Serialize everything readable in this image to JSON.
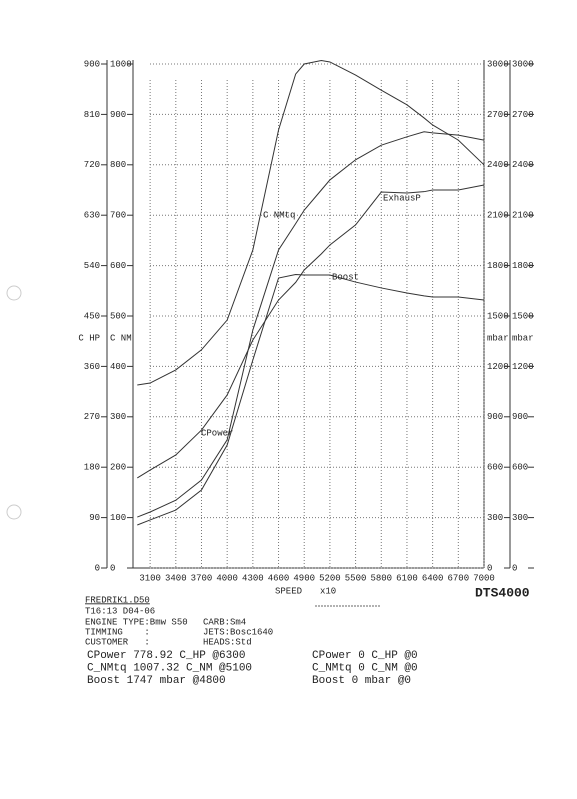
{
  "chart_data": {
    "type": "line",
    "x_label": "SPEED",
    "x_unit": "x10",
    "brand": "DTS4000",
    "x": [
      2950,
      3100,
      3400,
      3700,
      4000,
      4300,
      4600,
      4800,
      4900,
      5100,
      5200,
      5500,
      5800,
      6100,
      6300,
      6400,
      6700,
      7000
    ],
    "xlim": [
      2900,
      7000
    ],
    "xticks": [
      3100,
      3400,
      3700,
      4000,
      4300,
      4600,
      4900,
      5200,
      5500,
      5800,
      6100,
      6400,
      6700,
      7000
    ],
    "y_label": "C HP",
    "ylim": [
      0,
      900
    ],
    "yticks": [
      0,
      90,
      180,
      270,
      360,
      450,
      540,
      630,
      720,
      810,
      900
    ],
    "y2_label": "C NM",
    "y2lim": [
      0,
      1000
    ],
    "y2ticks": [
      0,
      100,
      200,
      300,
      400,
      500,
      600,
      700,
      800,
      900,
      1000
    ],
    "y3_label": "mbar",
    "y3lim": [
      0,
      3000
    ],
    "y3ticks": [
      0,
      300,
      600,
      900,
      1200,
      1500,
      1800,
      2100,
      2400,
      2700,
      3000
    ],
    "y4_label": "mbar",
    "y4lim": [
      0,
      3000
    ],
    "y4ticks": [
      0,
      300,
      600,
      900,
      1200,
      1500,
      1800,
      2100,
      2400,
      2700,
      3000
    ],
    "grid": true,
    "series": [
      {
        "name": "C NMtq",
        "color": "#333333",
        "axis": "y2",
        "values": [
          363,
          367,
          393,
          433,
          492,
          631,
          869,
          980,
          1000,
          1007,
          1004,
          978,
          948,
          919,
          893,
          879,
          849,
          800
        ]
      },
      {
        "name": "ExhausP",
        "color": "#333333",
        "axis": "y3",
        "values": [
          536,
          583,
          673,
          821,
          1030,
          1357,
          1595,
          1700,
          1774,
          1870,
          1923,
          2042,
          2238,
          2232,
          2240,
          2250,
          2250,
          2280
        ]
      },
      {
        "name": "Boost",
        "color": "#333333",
        "axis": "y4",
        "values": [
          256,
          286,
          345,
          464,
          732,
          1238,
          1726,
          1747,
          1744,
          1744,
          1744,
          1702,
          1667,
          1637,
          1620,
          1613,
          1613,
          1595
        ]
      },
      {
        "name": "CPower",
        "color": "#333333",
        "axis": "y",
        "values": [
          91,
          100,
          121,
          157,
          229,
          425,
          568,
          615,
          639,
          675,
          693,
          729,
          755,
          770,
          779,
          777,
          773,
          764
        ]
      }
    ]
  },
  "report": {
    "file": "FREDRIK1.D50",
    "time": "T16:13 D04-06",
    "info": [
      [
        "ENGINE TYPE:Bmw S50",
        "CARB:Sm4"
      ],
      [
        "TIMMING    :",
        "JETS:Bosc1640"
      ],
      [
        "CUSTOMER   :",
        "HEADS:Std"
      ]
    ],
    "results": [
      [
        "CPower 778.92 C_HP @6300",
        "CPower 0 C_HP @0"
      ],
      [
        "C_NMtq 1007.32 C_NM @5100",
        "C_NMtq 0 C_NM @0"
      ],
      [
        "Boost 1747 mbar @4800",
        "Boost 0 mbar @0"
      ]
    ]
  }
}
